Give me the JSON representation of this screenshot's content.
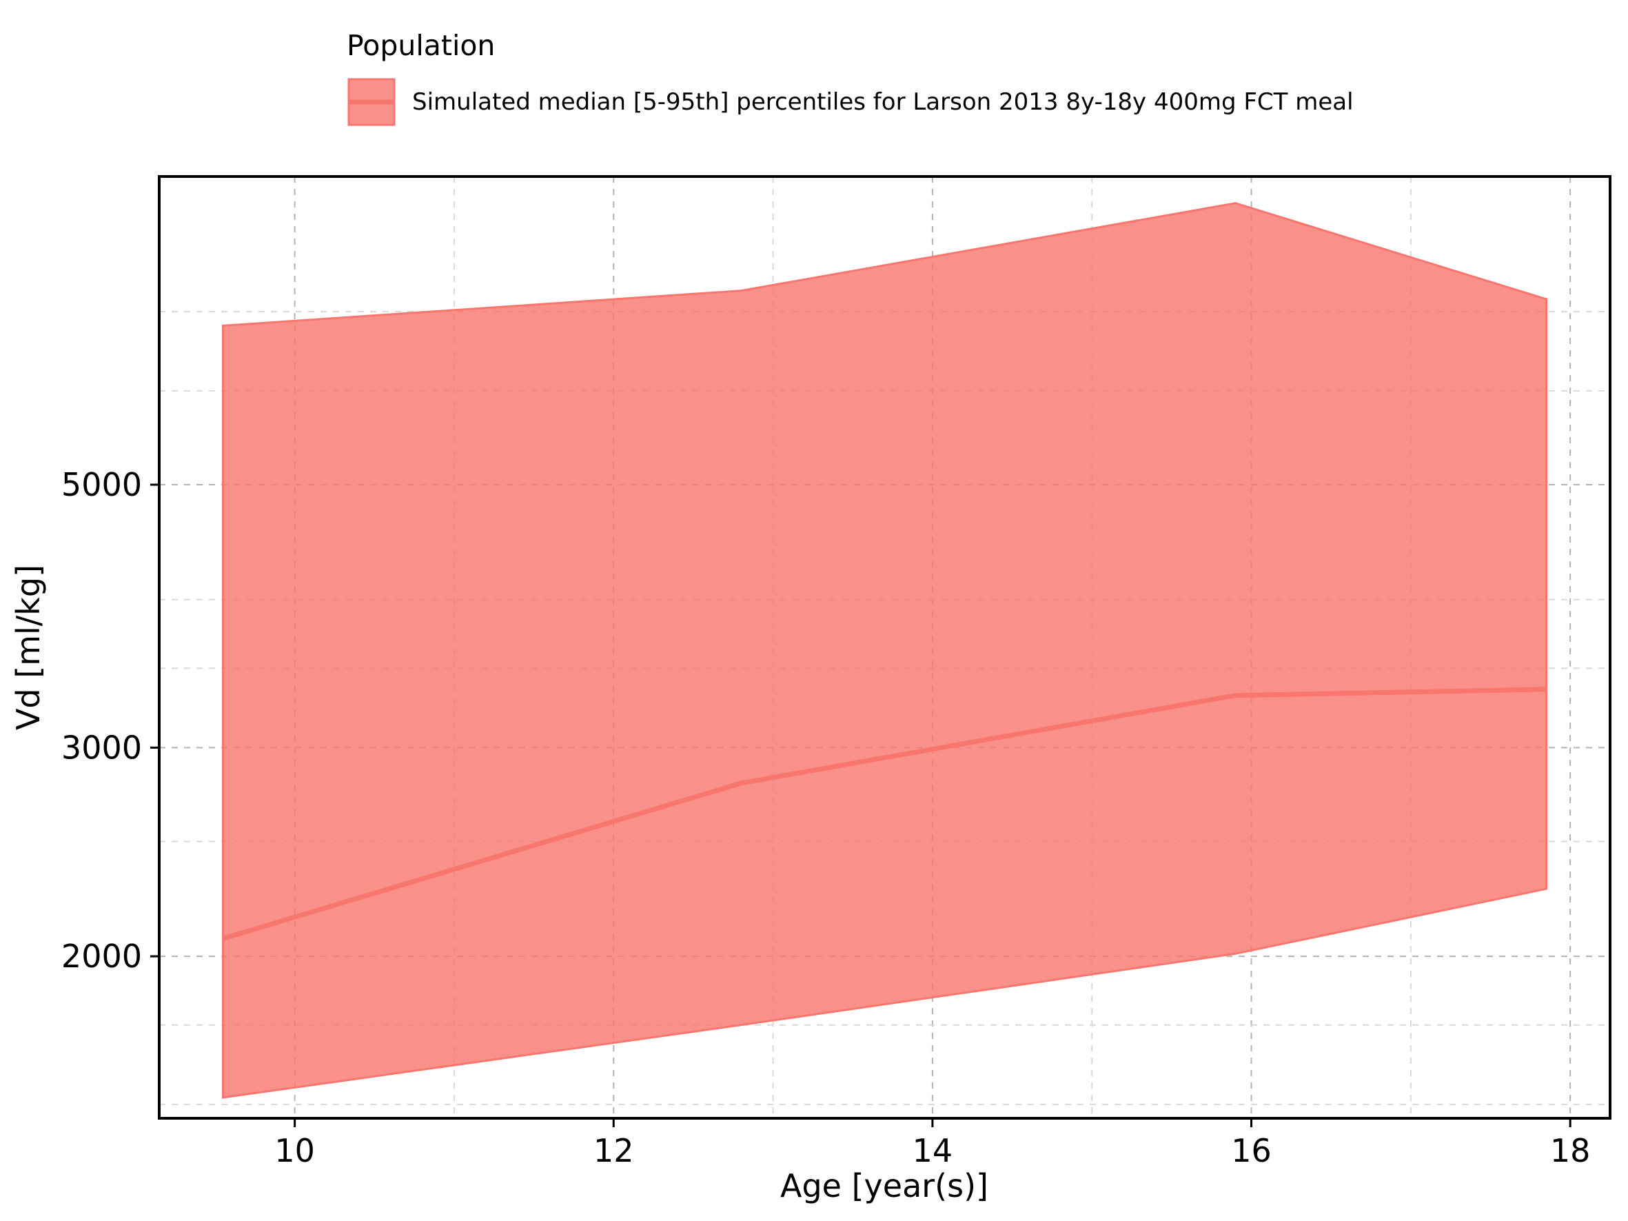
{
  "chart_data": {
    "type": "area",
    "xlabel": "Age [year(s)]",
    "ylabel": "Vd [ml/kg]",
    "x_scale": "linear",
    "y_scale": "log",
    "xlim": [
      9.15,
      18.25
    ],
    "ylim": [
      1460,
      9100
    ],
    "x_ticks": [
      10,
      12,
      14,
      16,
      18
    ],
    "x_tick_labels": [
      "10",
      "12",
      "14",
      "16",
      "18"
    ],
    "x_minor_ticks": [
      11,
      13,
      15,
      17
    ],
    "y_ticks": [
      2000,
      3000,
      5000
    ],
    "y_tick_labels": [
      "2000",
      "3000",
      "5000"
    ],
    "y_minor_ticks": [
      1500,
      1750,
      2500,
      3500,
      4000,
      6000,
      7000
    ],
    "grid": true,
    "legend_placement": "top-center",
    "legend": {
      "title": "Population",
      "entries": [
        "Simulated median [5-95th] percentiles for Larson 2013 8y-18y 400mg FCT meal"
      ]
    },
    "series": [
      {
        "name": "Simulated median [5-95th] percentiles for Larson 2013 8y-18y 400mg FCT meal",
        "color": "#F8766D",
        "fill_color": "#F8766D",
        "x": [
          9.55,
          12.8,
          15.9,
          17.85
        ],
        "median": [
          2070,
          2800,
          3320,
          3360
        ],
        "p5": [
          1520,
          1750,
          2010,
          2280
        ],
        "p95": [
          6810,
          7290,
          8640,
          7170
        ]
      }
    ]
  }
}
